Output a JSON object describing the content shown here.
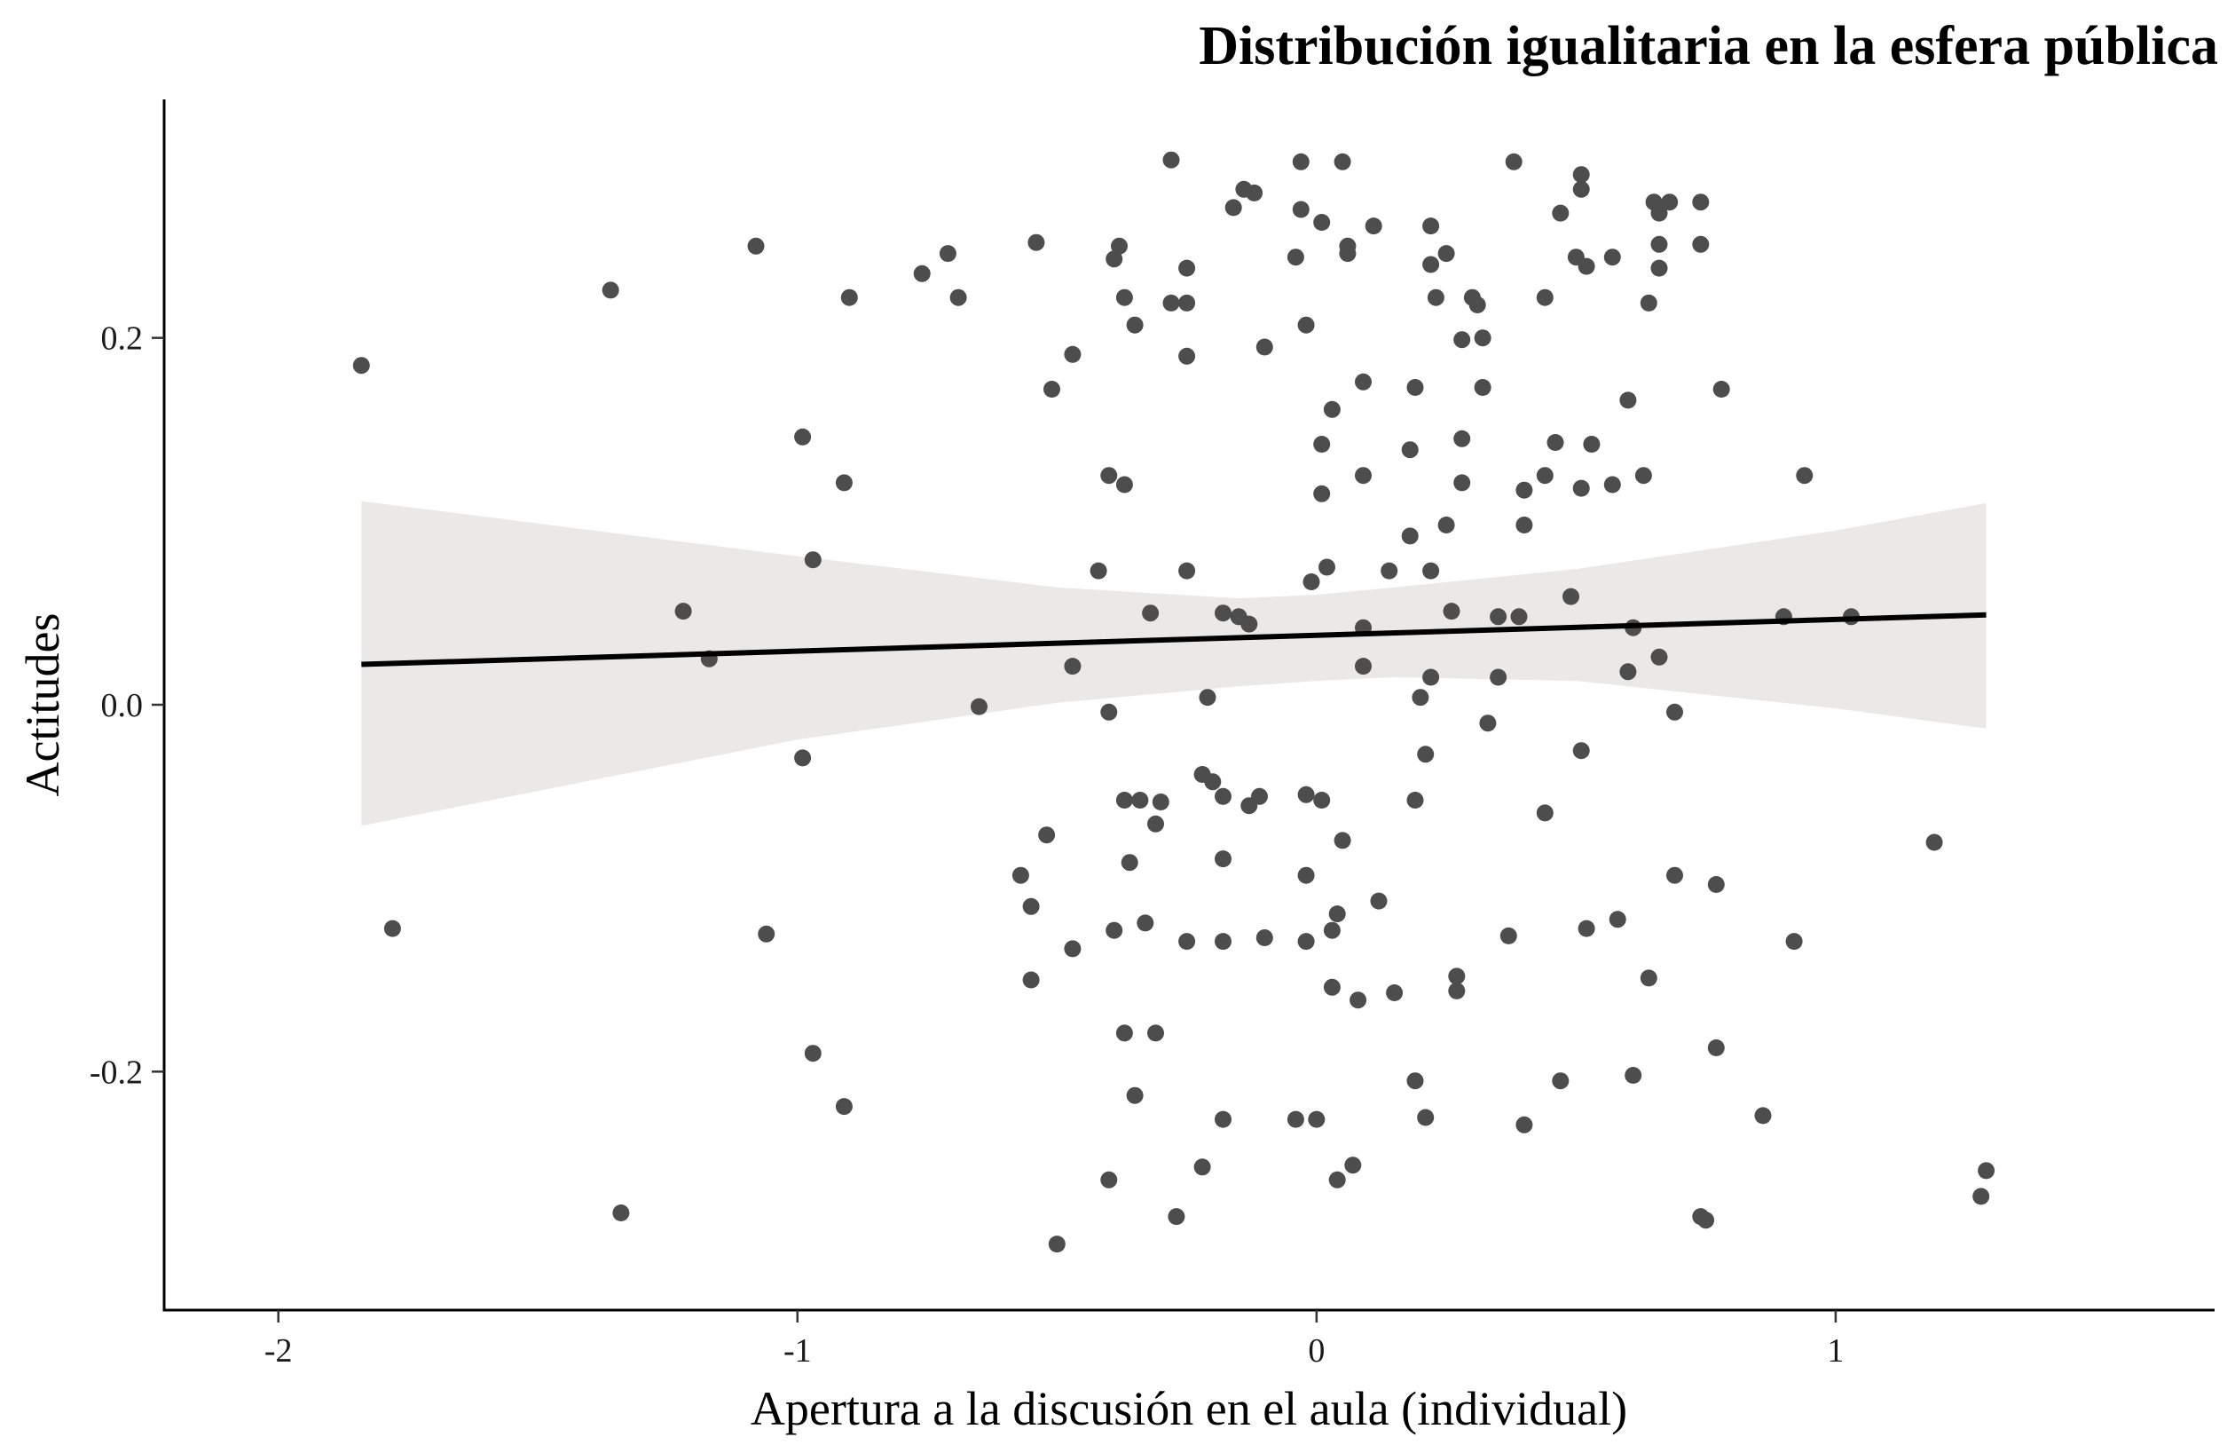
{
  "chart_data": {
    "type": "scatter",
    "title": "Distribución igualitaria en la esfera pública",
    "xlabel": "Apertura a la discusión en el aula (individual)",
    "ylabel": "Actitudes",
    "xlim": [
      -2.22,
      1.73
    ],
    "ylim": [
      -0.33,
      0.33
    ],
    "x_ticks": [
      -2,
      -1,
      0,
      1
    ],
    "x_tick_labels": [
      "-2",
      "-1",
      "0",
      "1"
    ],
    "y_ticks": [
      -0.2,
      0.0,
      0.2
    ],
    "y_tick_labels": [
      "-0.2",
      "0.0",
      "0.2"
    ],
    "grid": false,
    "legend": "none",
    "colors": {
      "points": "#4d4d4d",
      "fit_line": "#000000",
      "ribbon": "#e5e4e2"
    },
    "trend_line": {
      "x": [
        -1.84,
        1.29
      ],
      "y": [
        0.022,
        0.049
      ]
    },
    "confidence_band": {
      "x": [
        -1.84,
        -1.0,
        -0.5,
        -0.15,
        0.0,
        0.15,
        0.5,
        1.0,
        1.29
      ],
      "lower": [
        -0.066,
        -0.019,
        0.001,
        0.01,
        0.013,
        0.015,
        0.013,
        -0.002,
        -0.013
      ],
      "upper": [
        0.111,
        0.081,
        0.064,
        0.058,
        0.06,
        0.064,
        0.074,
        0.095,
        0.11
      ]
    },
    "points": [
      {
        "x": -1.84,
        "y": 0.185
      },
      {
        "x": -1.78,
        "y": -0.122
      },
      {
        "x": -1.36,
        "y": 0.226
      },
      {
        "x": -1.34,
        "y": -0.277
      },
      {
        "x": -1.22,
        "y": 0.051
      },
      {
        "x": -1.17,
        "y": 0.025
      },
      {
        "x": -1.08,
        "y": 0.25
      },
      {
        "x": -1.06,
        "y": -0.125
      },
      {
        "x": -0.99,
        "y": 0.146
      },
      {
        "x": -0.99,
        "y": -0.029
      },
      {
        "x": -0.97,
        "y": 0.079
      },
      {
        "x": -0.97,
        "y": -0.19
      },
      {
        "x": -0.91,
        "y": 0.121
      },
      {
        "x": -0.91,
        "y": -0.219
      },
      {
        "x": -0.9,
        "y": 0.222
      },
      {
        "x": -0.76,
        "y": 0.235
      },
      {
        "x": -0.71,
        "y": 0.246
      },
      {
        "x": -0.69,
        "y": 0.222
      },
      {
        "x": -0.65,
        "y": -0.001
      },
      {
        "x": -0.57,
        "y": -0.093
      },
      {
        "x": -0.55,
        "y": -0.11
      },
      {
        "x": -0.55,
        "y": -0.15
      },
      {
        "x": -0.54,
        "y": 0.252
      },
      {
        "x": -0.52,
        "y": -0.071
      },
      {
        "x": -0.51,
        "y": 0.172
      },
      {
        "x": -0.5,
        "y": -0.294
      },
      {
        "x": -0.47,
        "y": 0.191
      },
      {
        "x": -0.47,
        "y": 0.021
      },
      {
        "x": -0.47,
        "y": -0.133
      },
      {
        "x": -0.42,
        "y": 0.073
      },
      {
        "x": -0.4,
        "y": 0.125
      },
      {
        "x": -0.4,
        "y": -0.004
      },
      {
        "x": -0.4,
        "y": -0.259
      },
      {
        "x": -0.39,
        "y": 0.243
      },
      {
        "x": -0.39,
        "y": -0.123
      },
      {
        "x": -0.38,
        "y": 0.25
      },
      {
        "x": -0.37,
        "y": 0.222
      },
      {
        "x": -0.37,
        "y": 0.12
      },
      {
        "x": -0.37,
        "y": -0.052
      },
      {
        "x": -0.37,
        "y": -0.179
      },
      {
        "x": -0.36,
        "y": -0.086
      },
      {
        "x": -0.35,
        "y": 0.207
      },
      {
        "x": -0.35,
        "y": -0.213
      },
      {
        "x": -0.34,
        "y": -0.052
      },
      {
        "x": -0.33,
        "y": -0.119
      },
      {
        "x": -0.32,
        "y": 0.05
      },
      {
        "x": -0.31,
        "y": -0.065
      },
      {
        "x": -0.31,
        "y": -0.179
      },
      {
        "x": -0.3,
        "y": -0.053
      },
      {
        "x": -0.28,
        "y": 0.297
      },
      {
        "x": -0.28,
        "y": 0.219
      },
      {
        "x": -0.27,
        "y": -0.279
      },
      {
        "x": -0.25,
        "y": 0.238
      },
      {
        "x": -0.25,
        "y": 0.219
      },
      {
        "x": -0.25,
        "y": 0.19
      },
      {
        "x": -0.25,
        "y": 0.073
      },
      {
        "x": -0.25,
        "y": -0.129
      },
      {
        "x": -0.22,
        "y": -0.038
      },
      {
        "x": -0.22,
        "y": -0.252
      },
      {
        "x": -0.21,
        "y": 0.004
      },
      {
        "x": -0.2,
        "y": -0.042
      },
      {
        "x": -0.18,
        "y": 0.05
      },
      {
        "x": -0.18,
        "y": -0.05
      },
      {
        "x": -0.18,
        "y": -0.084
      },
      {
        "x": -0.18,
        "y": -0.129
      },
      {
        "x": -0.18,
        "y": -0.226
      },
      {
        "x": -0.16,
        "y": 0.271
      },
      {
        "x": -0.15,
        "y": 0.048
      },
      {
        "x": -0.14,
        "y": 0.281
      },
      {
        "x": -0.13,
        "y": 0.044
      },
      {
        "x": -0.13,
        "y": -0.055
      },
      {
        "x": -0.12,
        "y": 0.279
      },
      {
        "x": -0.11,
        "y": -0.05
      },
      {
        "x": -0.1,
        "y": 0.195
      },
      {
        "x": -0.1,
        "y": -0.127
      },
      {
        "x": -0.04,
        "y": 0.244
      },
      {
        "x": -0.04,
        "y": -0.226
      },
      {
        "x": -0.03,
        "y": 0.296
      },
      {
        "x": -0.03,
        "y": 0.27
      },
      {
        "x": -0.02,
        "y": 0.207
      },
      {
        "x": -0.02,
        "y": -0.049
      },
      {
        "x": -0.02,
        "y": -0.093
      },
      {
        "x": -0.02,
        "y": -0.129
      },
      {
        "x": -0.01,
        "y": 0.067
      },
      {
        "x": 0.0,
        "y": -0.226
      },
      {
        "x": 0.01,
        "y": 0.115
      },
      {
        "x": 0.01,
        "y": -0.052
      },
      {
        "x": 0.01,
        "y": 0.142
      },
      {
        "x": 0.01,
        "y": 0.263
      },
      {
        "x": 0.02,
        "y": 0.075
      },
      {
        "x": 0.03,
        "y": -0.154
      },
      {
        "x": 0.03,
        "y": -0.123
      },
      {
        "x": 0.03,
        "y": 0.161
      },
      {
        "x": 0.04,
        "y": -0.114
      },
      {
        "x": 0.04,
        "y": -0.259
      },
      {
        "x": 0.05,
        "y": 0.296
      },
      {
        "x": 0.05,
        "y": -0.074
      },
      {
        "x": 0.06,
        "y": 0.25
      },
      {
        "x": 0.06,
        "y": 0.246
      },
      {
        "x": 0.07,
        "y": -0.251
      },
      {
        "x": 0.08,
        "y": -0.161
      },
      {
        "x": 0.09,
        "y": 0.176
      },
      {
        "x": 0.09,
        "y": 0.125
      },
      {
        "x": 0.09,
        "y": 0.042
      },
      {
        "x": 0.09,
        "y": 0.021
      },
      {
        "x": 0.11,
        "y": 0.261
      },
      {
        "x": 0.12,
        "y": -0.107
      },
      {
        "x": 0.14,
        "y": 0.073
      },
      {
        "x": 0.15,
        "y": -0.157
      },
      {
        "x": 0.18,
        "y": 0.139
      },
      {
        "x": 0.18,
        "y": 0.092
      },
      {
        "x": 0.19,
        "y": 0.173
      },
      {
        "x": 0.19,
        "y": -0.052
      },
      {
        "x": 0.19,
        "y": -0.205
      },
      {
        "x": 0.2,
        "y": 0.004
      },
      {
        "x": 0.21,
        "y": -0.027
      },
      {
        "x": 0.21,
        "y": -0.225
      },
      {
        "x": 0.22,
        "y": 0.261
      },
      {
        "x": 0.22,
        "y": 0.24
      },
      {
        "x": 0.22,
        "y": 0.073
      },
      {
        "x": 0.22,
        "y": 0.015
      },
      {
        "x": 0.23,
        "y": 0.222
      },
      {
        "x": 0.25,
        "y": 0.246
      },
      {
        "x": 0.25,
        "y": 0.098
      },
      {
        "x": 0.26,
        "y": 0.051
      },
      {
        "x": 0.27,
        "y": -0.148
      },
      {
        "x": 0.27,
        "y": -0.156
      },
      {
        "x": 0.28,
        "y": 0.199
      },
      {
        "x": 0.28,
        "y": 0.145
      },
      {
        "x": 0.28,
        "y": 0.121
      },
      {
        "x": 0.3,
        "y": 0.222
      },
      {
        "x": 0.31,
        "y": 0.218
      },
      {
        "x": 0.32,
        "y": 0.2
      },
      {
        "x": 0.32,
        "y": 0.173
      },
      {
        "x": 0.33,
        "y": -0.01
      },
      {
        "x": 0.35,
        "y": 0.048
      },
      {
        "x": 0.35,
        "y": 0.015
      },
      {
        "x": 0.37,
        "y": -0.126
      },
      {
        "x": 0.38,
        "y": 0.296
      },
      {
        "x": 0.39,
        "y": 0.048
      },
      {
        "x": 0.4,
        "y": 0.117
      },
      {
        "x": 0.4,
        "y": 0.098
      },
      {
        "x": 0.4,
        "y": -0.229
      },
      {
        "x": 0.44,
        "y": 0.222
      },
      {
        "x": 0.44,
        "y": 0.125
      },
      {
        "x": 0.44,
        "y": -0.059
      },
      {
        "x": 0.46,
        "y": 0.143
      },
      {
        "x": 0.47,
        "y": 0.268
      },
      {
        "x": 0.47,
        "y": -0.205
      },
      {
        "x": 0.49,
        "y": 0.059
      },
      {
        "x": 0.5,
        "y": 0.244
      },
      {
        "x": 0.51,
        "y": 0.289
      },
      {
        "x": 0.51,
        "y": 0.281
      },
      {
        "x": 0.51,
        "y": 0.118
      },
      {
        "x": 0.51,
        "y": -0.025
      },
      {
        "x": 0.52,
        "y": 0.239
      },
      {
        "x": 0.52,
        "y": -0.122
      },
      {
        "x": 0.53,
        "y": 0.142
      },
      {
        "x": 0.57,
        "y": 0.244
      },
      {
        "x": 0.57,
        "y": 0.12
      },
      {
        "x": 0.58,
        "y": -0.117
      },
      {
        "x": 0.6,
        "y": 0.166
      },
      {
        "x": 0.6,
        "y": 0.018
      },
      {
        "x": 0.61,
        "y": 0.042
      },
      {
        "x": 0.61,
        "y": -0.202
      },
      {
        "x": 0.63,
        "y": 0.125
      },
      {
        "x": 0.64,
        "y": 0.219
      },
      {
        "x": 0.64,
        "y": -0.149
      },
      {
        "x": 0.65,
        "y": 0.274
      },
      {
        "x": 0.66,
        "y": 0.251
      },
      {
        "x": 0.66,
        "y": 0.238
      },
      {
        "x": 0.66,
        "y": 0.268
      },
      {
        "x": 0.66,
        "y": 0.026
      },
      {
        "x": 0.68,
        "y": 0.274
      },
      {
        "x": 0.69,
        "y": -0.004
      },
      {
        "x": 0.69,
        "y": -0.093
      },
      {
        "x": 0.74,
        "y": 0.274
      },
      {
        "x": 0.74,
        "y": 0.251
      },
      {
        "x": 0.74,
        "y": -0.279
      },
      {
        "x": 0.75,
        "y": -0.281
      },
      {
        "x": 0.77,
        "y": -0.187
      },
      {
        "x": 0.77,
        "y": -0.098
      },
      {
        "x": 0.78,
        "y": 0.172
      },
      {
        "x": 0.86,
        "y": -0.224
      },
      {
        "x": 0.9,
        "y": 0.048
      },
      {
        "x": 0.92,
        "y": -0.129
      },
      {
        "x": 0.94,
        "y": 0.125
      },
      {
        "x": 1.03,
        "y": 0.048
      },
      {
        "x": 1.19,
        "y": -0.075
      },
      {
        "x": 1.28,
        "y": -0.268
      },
      {
        "x": 1.29,
        "y": -0.254
      }
    ]
  }
}
